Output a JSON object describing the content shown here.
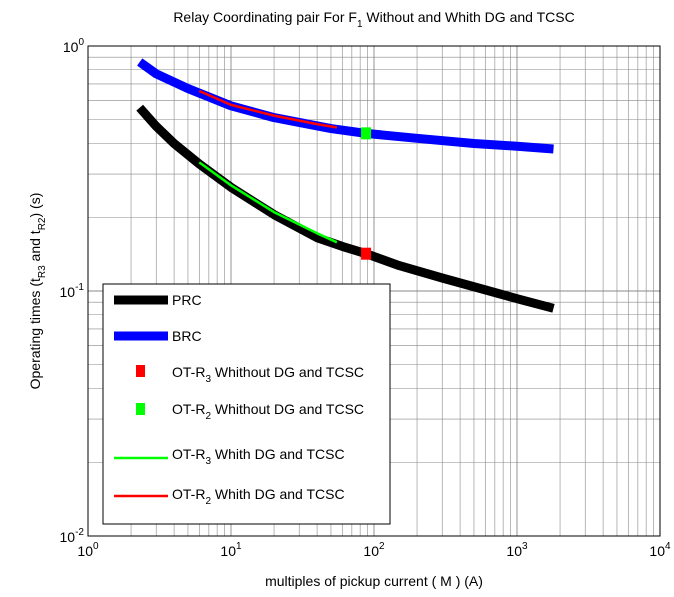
{
  "chart_data": {
    "type": "line",
    "title_main": "Relay Coordinating pair For F",
    "title_sub": "1",
    "title_rest": " Without and Whith DG and TCSC",
    "xlabel": "multiples of pickup current ( M ) (A)",
    "ylabel": {
      "a": "Operating times  (t",
      "b": "R3",
      "c": " and t",
      "d": "R2",
      "e": ") (s)"
    },
    "x_scale": "log",
    "y_scale": "log",
    "xlim": [
      1,
      10000
    ],
    "ylim": [
      0.01,
      1
    ],
    "grid": true,
    "x_ticks": [
      {
        "v": 1,
        "base": "10",
        "exp": "0"
      },
      {
        "v": 10,
        "base": "10",
        "exp": "1"
      },
      {
        "v": 100,
        "base": "10",
        "exp": "2"
      },
      {
        "v": 1000,
        "base": "10",
        "exp": "3"
      },
      {
        "v": 10000,
        "base": "10",
        "exp": "4"
      }
    ],
    "y_ticks": [
      {
        "v": 0.01,
        "base": "10",
        "exp": "-2"
      },
      {
        "v": 0.1,
        "base": "10",
        "exp": "-1"
      },
      {
        "v": 1,
        "base": "10",
        "exp": "0"
      }
    ],
    "series": [
      {
        "key": "prc",
        "name": "PRC",
        "color": "#000000",
        "kind": "line",
        "width": 9,
        "points": [
          [
            2.3,
            0.56
          ],
          [
            3,
            0.47
          ],
          [
            4,
            0.4
          ],
          [
            6,
            0.33
          ],
          [
            10,
            0.265
          ],
          [
            20,
            0.205
          ],
          [
            40,
            0.165
          ],
          [
            60,
            0.152
          ],
          [
            88,
            0.142
          ],
          [
            150,
            0.127
          ],
          [
            300,
            0.113
          ],
          [
            600,
            0.101
          ],
          [
            1000,
            0.093
          ],
          [
            1800,
            0.085
          ]
        ]
      },
      {
        "key": "brc",
        "name": "BRC",
        "color": "#0000ff",
        "kind": "line",
        "width": 9,
        "points": [
          [
            2.3,
            0.86
          ],
          [
            3,
            0.77
          ],
          [
            5,
            0.67
          ],
          [
            10,
            0.57
          ],
          [
            20,
            0.51
          ],
          [
            50,
            0.46
          ],
          [
            88,
            0.44
          ],
          [
            200,
            0.42
          ],
          [
            500,
            0.4
          ],
          [
            1000,
            0.39
          ],
          [
            1800,
            0.38
          ]
        ]
      },
      {
        "key": "ot_r3_without",
        "name_main": "OT-R",
        "name_sub": "3",
        "name_rest": " Whithout DG and TCSC",
        "color": "#ff0000",
        "kind": "marker",
        "points": [
          [
            88,
            0.142
          ]
        ]
      },
      {
        "key": "ot_r2_without",
        "name_main": "OT-R",
        "name_sub": "2",
        "name_rest": " Whithout DG and TCSC",
        "color": "#00ff00",
        "kind": "marker",
        "points": [
          [
            88,
            0.44
          ]
        ]
      },
      {
        "key": "ot_r3_with",
        "name_main": "OT-R",
        "name_sub": "3",
        "name_rest": " Whith DG and TCSC",
        "color": "#00ff00",
        "kind": "line",
        "width": 2.5,
        "points": [
          [
            6,
            0.335
          ],
          [
            10,
            0.27
          ],
          [
            20,
            0.21
          ],
          [
            40,
            0.172
          ],
          [
            55,
            0.158
          ]
        ]
      },
      {
        "key": "ot_r2_with",
        "name_main": "OT-R",
        "name_sub": "2",
        "name_rest": " Whith DG and TCSC",
        "color": "#ff0000",
        "kind": "line",
        "width": 2.5,
        "points": [
          [
            6,
            0.655
          ],
          [
            10,
            0.575
          ],
          [
            20,
            0.52
          ],
          [
            40,
            0.48
          ],
          [
            55,
            0.465
          ]
        ]
      }
    ],
    "legend_position": "bottom-left"
  }
}
